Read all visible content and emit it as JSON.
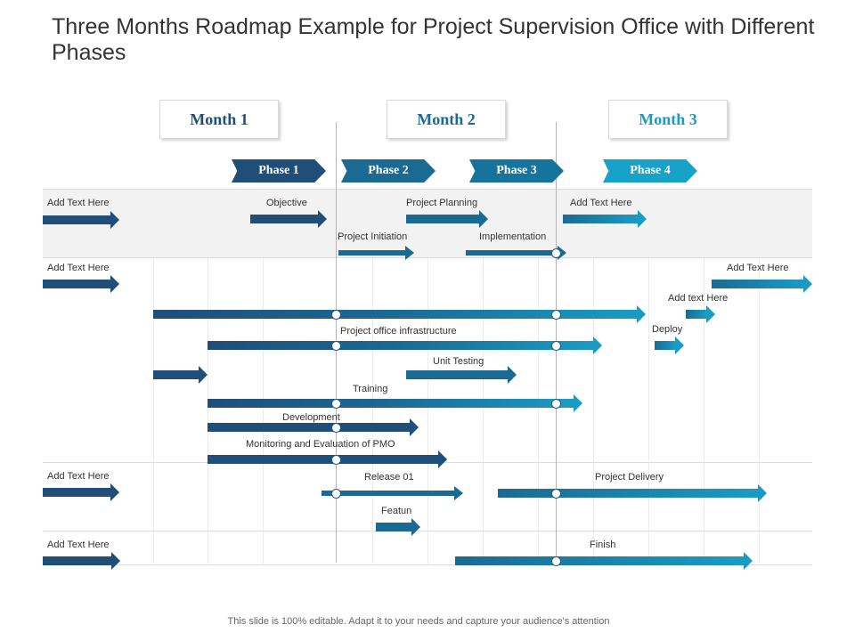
{
  "title": "Three Months Roadmap Example for Project Supervision Office  with Different Phases",
  "months": [
    {
      "label": "Month 1",
      "color": "#1f4e79"
    },
    {
      "label": "Month 2",
      "color": "#1b6a93"
    },
    {
      "label": "Month 3",
      "color": "#1a9bbf"
    }
  ],
  "phases": [
    {
      "label": "Phase 1",
      "color": "#1f4e79"
    },
    {
      "label": "Phase 2",
      "color": "#1b6a93"
    },
    {
      "label": "Phase 3",
      "color": "#16739c"
    },
    {
      "label": "Phase 4",
      "color": "#17a2c9"
    }
  ],
  "labels": {
    "r1_left": "Add Text Here",
    "objective": "Objective",
    "project_planning": "Project Planning",
    "r1_right": "Add Text Here",
    "project_initiation": "Project Initiation",
    "implementation": "Implementation",
    "r2_left": "Add Text Here",
    "r2_right": "Add Text Here",
    "add_text_here_lower": "Add text Here",
    "deploy": "Deploy",
    "project_office_infrastructure": "Project office infrastructure",
    "unit_testing": "Unit Testing",
    "training": "Training",
    "development": "Development",
    "monitoring": "Monitoring and Evaluation of  PMO",
    "r3_left": "Add Text Here",
    "release": "Release 01",
    "project_delivery": "Project Delivery",
    "featun": "Featun",
    "r4_left": "Add Text Here",
    "finish": "Finish"
  },
  "colors": {
    "dark": "#1f4e79",
    "mid": "#1b6a93",
    "light": "#1a9bc4",
    "band": "#f2f2f2"
  },
  "footer": "This slide is 100% editable. Adapt it to your needs and capture your audience's attention"
}
